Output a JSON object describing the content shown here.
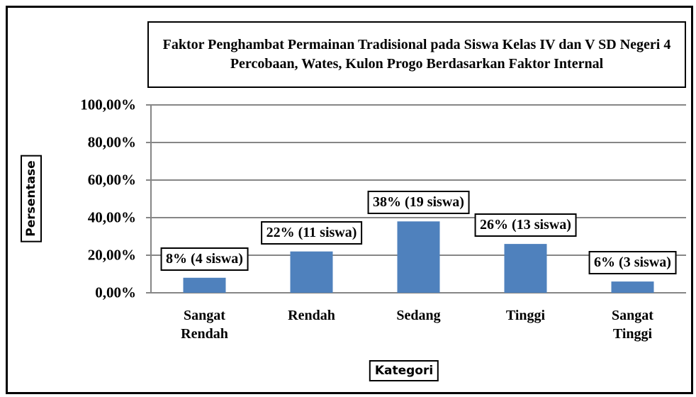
{
  "chart_data": {
    "type": "bar",
    "title": "Faktor Penghambat Permainan Tradisional pada Siswa Kelas IV dan V SD Negeri 4 Percobaan, Wates, Kulon Progo Berdasarkan Faktor Internal",
    "ylabel": "Persentase",
    "xlabel": "Kategori",
    "categories": [
      "Sangat Rendah",
      "Rendah",
      "Sedang",
      "Tinggi",
      "Sangat Tinggi"
    ],
    "values": [
      8,
      22,
      38,
      26,
      6
    ],
    "value_labels": [
      "8% (4 siswa)",
      "22% (11 siswa)",
      "38% (19 siswa)",
      "26% (13 siswa)",
      "6% (3 siswa)"
    ],
    "color": "#4f81bd",
    "ylim": [
      0,
      100
    ],
    "yticks": [
      {
        "value": 0,
        "label": "0,00%"
      },
      {
        "value": 20,
        "label": "20,00%"
      },
      {
        "value": 40,
        "label": "40,00%"
      },
      {
        "value": 60,
        "label": "60,00%"
      },
      {
        "value": 80,
        "label": "80,00%"
      },
      {
        "value": 100,
        "label": "100,00%"
      }
    ],
    "grid": true
  }
}
